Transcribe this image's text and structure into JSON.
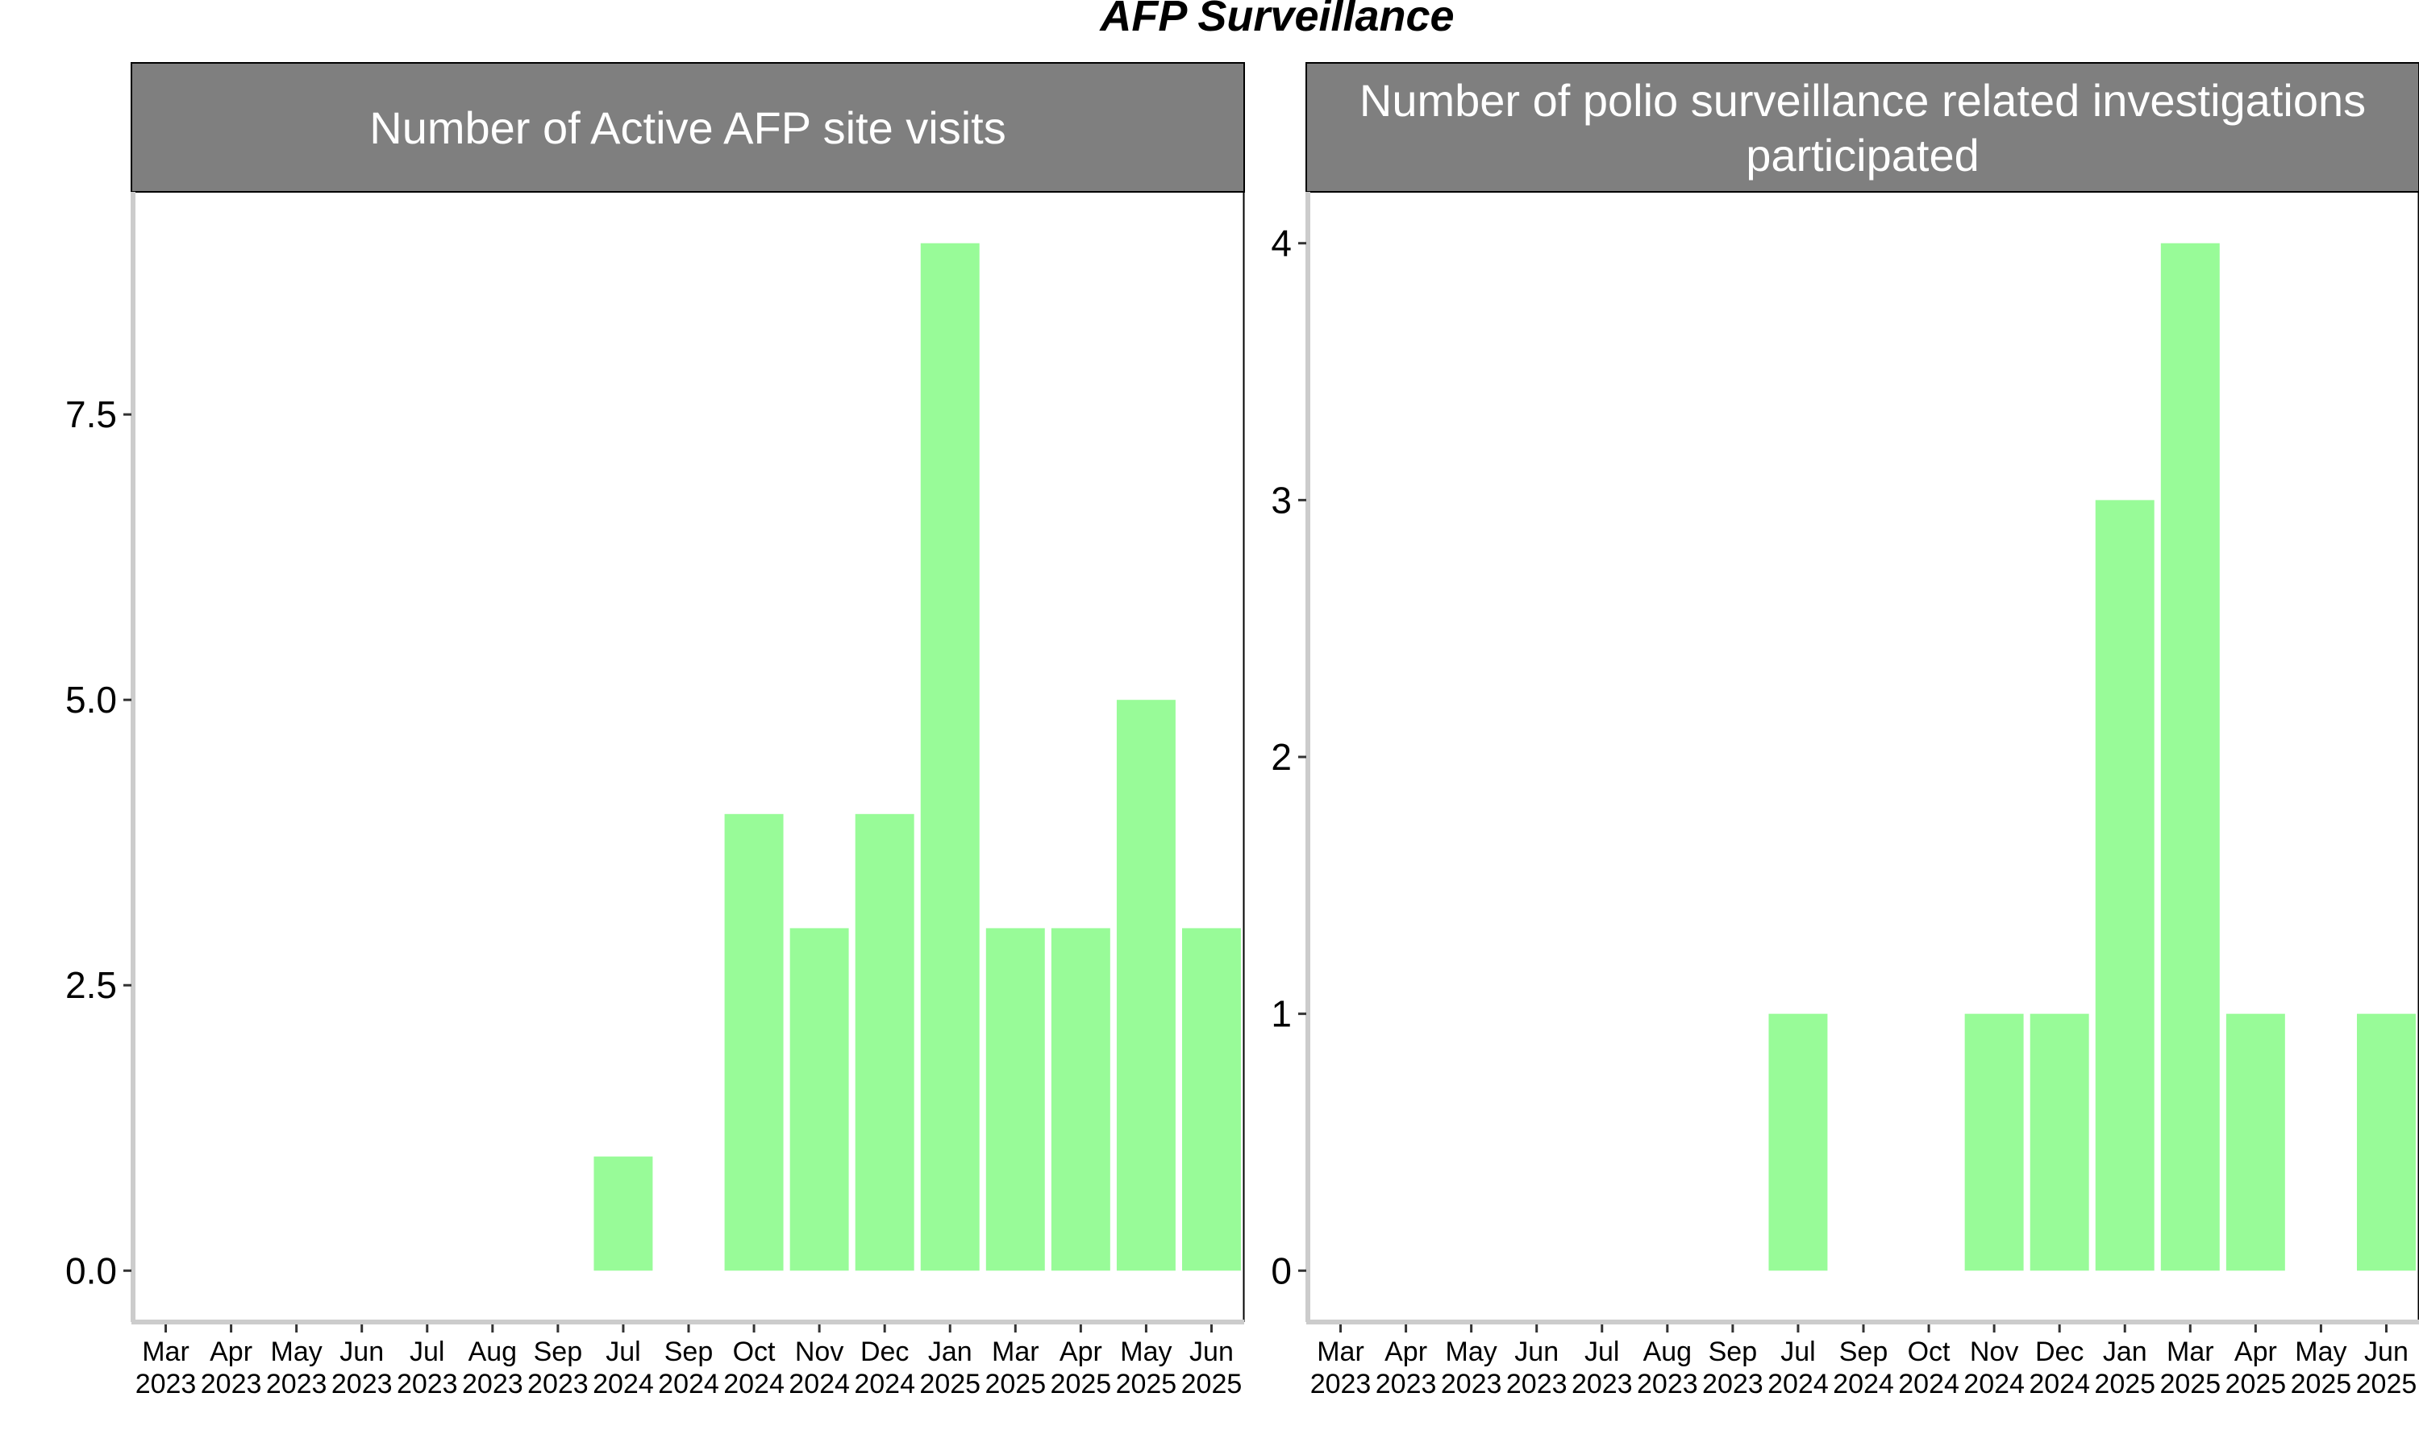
{
  "figure": {
    "title": "AFP Surveillance"
  },
  "chart_data": [
    {
      "type": "bar",
      "title_lines": [
        "Number of Active AFP site visits"
      ],
      "categories": [
        [
          "Mar",
          "2023"
        ],
        [
          "Apr",
          "2023"
        ],
        [
          "May",
          "2023"
        ],
        [
          "Jun",
          "2023"
        ],
        [
          "Jul",
          "2023"
        ],
        [
          "Aug",
          "2023"
        ],
        [
          "Sep",
          "2023"
        ],
        [
          "Jul",
          "2024"
        ],
        [
          "Sep",
          "2024"
        ],
        [
          "Oct",
          "2024"
        ],
        [
          "Nov",
          "2024"
        ],
        [
          "Dec",
          "2024"
        ],
        [
          "Jan",
          "2025"
        ],
        [
          "Mar",
          "2025"
        ],
        [
          "Apr",
          "2025"
        ],
        [
          "May",
          "2025"
        ],
        [
          "Jun",
          "2025"
        ]
      ],
      "values": [
        0,
        0,
        0,
        0,
        0,
        0,
        0,
        1,
        0,
        4,
        3,
        4,
        9,
        3,
        3,
        5,
        3
      ],
      "yticks": [
        "0.0",
        "2.5",
        "5.0",
        "7.5"
      ],
      "ytick_values": [
        0,
        2.5,
        5,
        7.5
      ],
      "ylim": [
        -0.45,
        9.45
      ],
      "xlabel": "",
      "ylabel": "",
      "bar_color": "#98fb98",
      "grid": false
    },
    {
      "type": "bar",
      "title_lines": [
        "Number of polio surveillance related investigations",
        "participated"
      ],
      "categories": [
        [
          "Mar",
          "2023"
        ],
        [
          "Apr",
          "2023"
        ],
        [
          "May",
          "2023"
        ],
        [
          "Jun",
          "2023"
        ],
        [
          "Jul",
          "2023"
        ],
        [
          "Aug",
          "2023"
        ],
        [
          "Sep",
          "2023"
        ],
        [
          "Jul",
          "2024"
        ],
        [
          "Sep",
          "2024"
        ],
        [
          "Oct",
          "2024"
        ],
        [
          "Nov",
          "2024"
        ],
        [
          "Dec",
          "2024"
        ],
        [
          "Jan",
          "2025"
        ],
        [
          "Mar",
          "2025"
        ],
        [
          "Apr",
          "2025"
        ],
        [
          "May",
          "2025"
        ],
        [
          "Jun",
          "2025"
        ]
      ],
      "values": [
        0,
        0,
        0,
        0,
        0,
        0,
        0,
        1,
        0,
        0,
        1,
        1,
        3,
        4,
        1,
        0,
        1
      ],
      "yticks": [
        "0",
        "1",
        "2",
        "3",
        "4"
      ],
      "ytick_values": [
        0,
        1,
        2,
        3,
        4
      ],
      "ylim": [
        -0.2,
        4.2
      ],
      "xlabel": "",
      "ylabel": "",
      "bar_color": "#98fb98",
      "grid": false
    }
  ]
}
